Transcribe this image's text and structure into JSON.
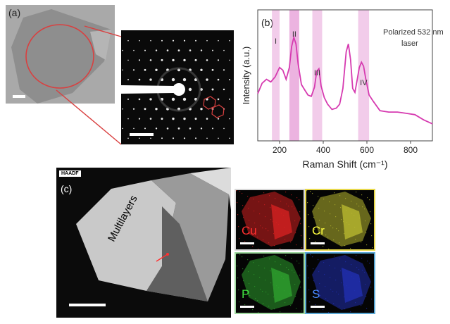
{
  "panels": {
    "a": {
      "label": "(a)"
    },
    "b": {
      "label": "(b)"
    },
    "c": {
      "label": "(c)",
      "detector": "HAADF",
      "annotation": "Multilayers"
    }
  },
  "raman": {
    "annotation_line1": "Polarized 532 nm",
    "annotation_line2": "laser",
    "bands": [
      {
        "label": "I",
        "from": 165,
        "to": 200
      },
      {
        "label": "II",
        "from": 245,
        "to": 290
      },
      {
        "label": "III",
        "from": 350,
        "to": 395
      },
      {
        "label": "IV",
        "from": 560,
        "to": 610
      }
    ]
  },
  "eds": [
    {
      "element": "Cu",
      "color": "#d42020",
      "label_color": "#ff3030",
      "border": "#d9d9d9"
    },
    {
      "element": "Cr",
      "color": "#b8b830",
      "label_color": "#ffff40",
      "border": "#e8d84a"
    },
    {
      "element": "P",
      "color": "#2ea02e",
      "label_color": "#40e040",
      "border": "#9fd99f"
    },
    {
      "element": "S",
      "color": "#2030b0",
      "label_color": "#4a8aff",
      "border": "#5aa9d6"
    }
  ],
  "colors": {
    "raman_line": "#d63ab0",
    "band_fill": "#e59ad6",
    "link_line": "#d94040"
  },
  "chart_data": {
    "type": "line",
    "title": "",
    "xlabel": "Raman Shift (cm⁻¹)",
    "ylabel": "Intensity (a.u.)",
    "xlim": [
      100,
      900
    ],
    "ylim": [
      0,
      100
    ],
    "xticks": [
      200,
      400,
      600,
      800
    ],
    "xtick_labels": [
      "200",
      "400",
      "600",
      "800"
    ],
    "grid": false,
    "x": [
      100,
      120,
      140,
      160,
      180,
      200,
      215,
      230,
      245,
      255,
      265,
      275,
      285,
      300,
      315,
      330,
      345,
      360,
      370,
      380,
      390,
      405,
      420,
      440,
      460,
      475,
      490,
      505,
      515,
      525,
      535,
      545,
      555,
      565,
      575,
      585,
      595,
      610,
      630,
      660,
      700,
      740,
      780,
      820,
      860,
      900
    ],
    "series": [
      {
        "values": [
          36,
          44,
          47,
          45,
          49,
          56,
          54,
          47,
          56,
          72,
          79,
          74,
          59,
          43,
          39,
          35,
          34,
          41,
          53,
          55,
          42,
          33,
          28,
          24,
          25,
          28,
          40,
          68,
          74,
          62,
          40,
          37,
          46,
          56,
          60,
          57,
          47,
          35,
          30,
          23,
          22,
          22,
          21,
          20,
          16,
          13
        ]
      }
    ]
  }
}
